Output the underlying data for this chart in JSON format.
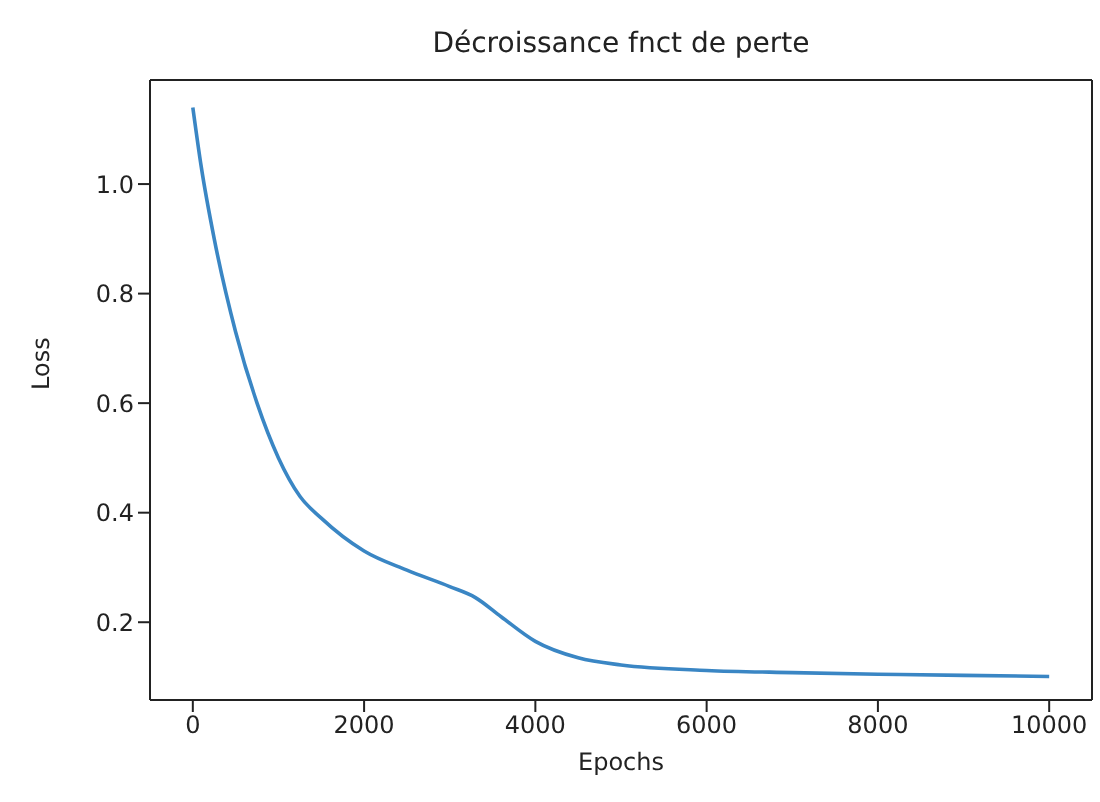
{
  "chart_data": {
    "type": "line",
    "title": "Décroissance fnct de perte",
    "xlabel": "Epochs",
    "ylabel": "Loss",
    "x": [
      0,
      100,
      250,
      500,
      750,
      1000,
      1250,
      1500,
      2000,
      2500,
      3000,
      3300,
      3600,
      4000,
      4500,
      5000,
      6000,
      7000,
      8000,
      9000,
      10000
    ],
    "series": [
      {
        "color": "#3a86c4",
        "values": [
          1.14,
          1.03,
          0.9,
          0.73,
          0.6,
          0.5,
          0.43,
          0.39,
          0.33,
          0.295,
          0.265,
          0.245,
          0.21,
          0.165,
          0.135,
          0.122,
          0.112,
          0.108,
          0.105,
          0.103,
          0.101
        ]
      }
    ],
    "xlim": [
      -500,
      10500
    ],
    "xticks": [
      0,
      2000,
      4000,
      6000,
      8000,
      10000
    ],
    "ylim": [
      0.058,
      1.19
    ],
    "yticks": [
      0.2,
      0.4,
      0.6,
      0.8,
      {
        "value": 1,
        "label": "1.0"
      }
    ],
    "grid": false,
    "legend": false,
    "marker": "none",
    "line_style": "solid"
  }
}
